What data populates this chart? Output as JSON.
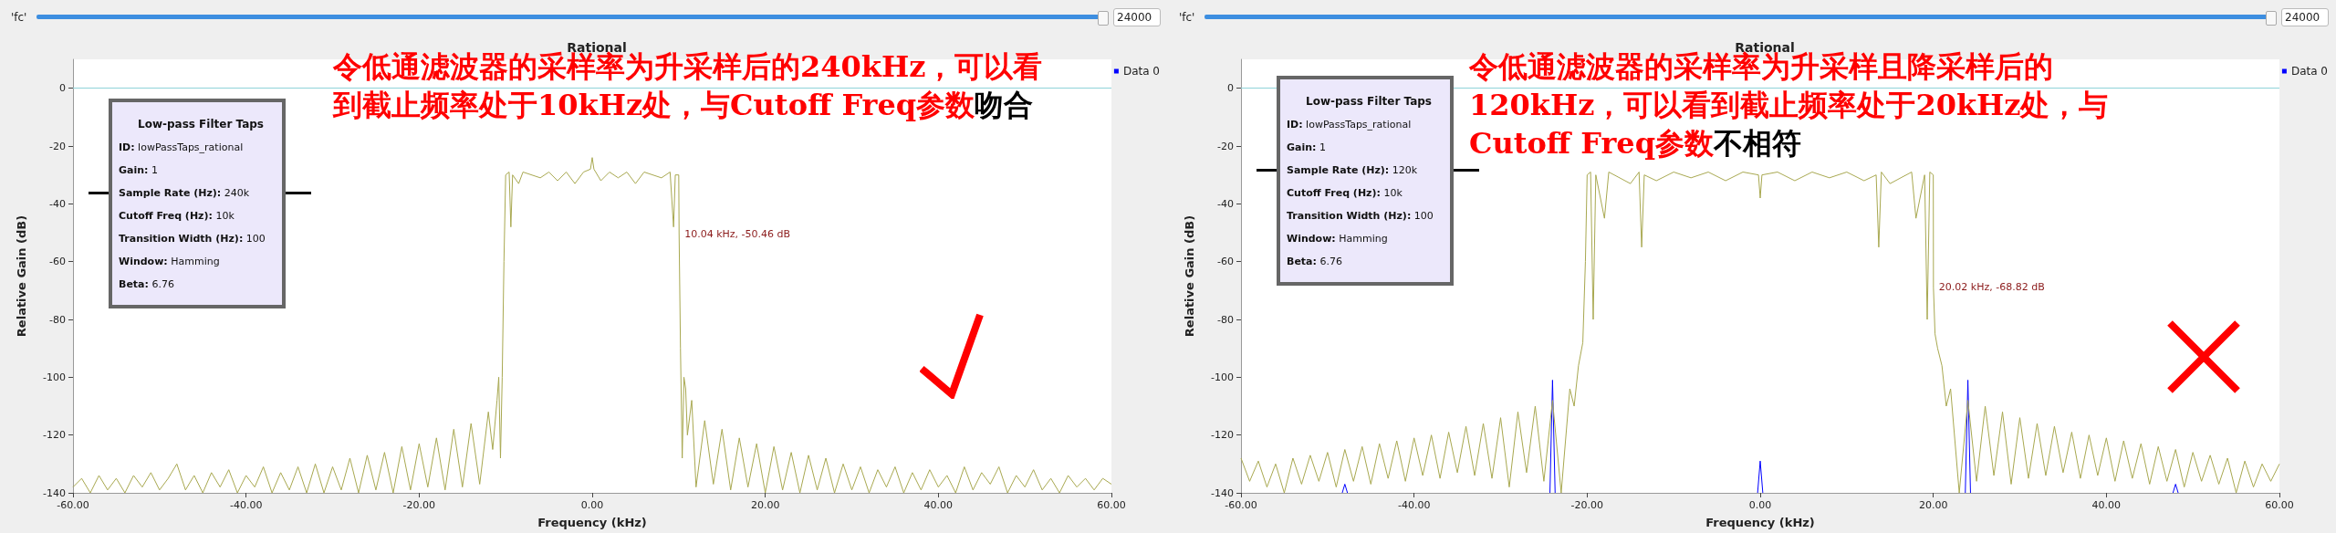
{
  "chart_data": [
    {
      "type": "line",
      "title": "Rational",
      "xlabel": "Frequency (kHz)",
      "ylabel": "Relative Gain (dB)",
      "xlim": [
        -60,
        60
      ],
      "xticks": [
        {
          "value": -60,
          "label": "-60.00"
        },
        {
          "value": -40,
          "label": "-40.00"
        },
        {
          "value": -20,
          "label": "-20.00"
        },
        {
          "value": 0,
          "label": "0.00"
        },
        {
          "value": 20,
          "label": "20.00"
        },
        {
          "value": 40,
          "label": "40.00"
        },
        {
          "value": 60,
          "label": "60.00"
        }
      ],
      "ylim": [
        -140,
        10
      ],
      "yticks": [
        -140,
        -120,
        -100,
        -80,
        -60,
        -40,
        -20,
        0
      ],
      "grid": false,
      "legend": "top right",
      "ref_lines": [
        {
          "axis": "y",
          "value": 0,
          "color": "#8fd3d8"
        }
      ],
      "series": [
        {
          "name": "Data 0",
          "color": "#0000ff"
        },
        {
          "color": "#a8a850",
          "x": [
            -60,
            -59,
            -58,
            -57,
            -56,
            -55,
            -54,
            -53,
            -52,
            -51,
            -50,
            -49,
            -48,
            -47,
            -46,
            -45,
            -44,
            -43,
            -42,
            -41,
            -40,
            -39,
            -38,
            -37,
            -36,
            -35,
            -34,
            -33,
            -32,
            -31,
            -30,
            -29,
            -28,
            -27,
            -26,
            -25,
            -24,
            -23,
            -22,
            -21,
            -20,
            -19,
            -18,
            -17,
            -16,
            -15,
            -14,
            -13,
            -12,
            -11.5,
            -11,
            -10.8,
            -10.6,
            -10.4,
            -10.2,
            -10,
            -9.6,
            -9.4,
            -9.2,
            -8.5,
            -8,
            -6,
            -5,
            -4,
            -3,
            -2,
            -1,
            -0.2,
            0,
            0.2,
            1,
            2,
            3,
            4,
            5,
            6,
            8,
            9,
            9.4,
            9.6,
            10,
            10.04,
            10.2,
            10.4,
            10.6,
            10.8,
            11,
            11.5,
            12,
            13,
            14,
            15,
            16,
            17,
            18,
            19,
            20,
            21,
            22,
            23,
            24,
            25,
            26,
            27,
            28,
            29,
            30,
            31,
            32,
            33,
            34,
            35,
            36,
            37,
            38,
            39,
            40,
            41,
            42,
            43,
            44,
            45,
            46,
            47,
            48,
            49,
            50,
            51,
            52,
            53,
            54,
            55,
            56,
            57,
            58,
            59,
            60
          ],
          "values": [
            -138,
            -135,
            -140,
            -134,
            -139,
            -135,
            -140,
            -134,
            -138,
            -133,
            -139,
            -135,
            -130,
            -139,
            -134,
            -140,
            -133,
            -138,
            -132,
            -140,
            -134,
            -138,
            -131,
            -140,
            -133,
            -139,
            -131,
            -140,
            -130,
            -140,
            -131,
            -139,
            -128,
            -140,
            -127,
            -139,
            -126,
            -140,
            -124,
            -139,
            -123,
            -138,
            -121,
            -139,
            -118,
            -138,
            -116,
            -137,
            -112,
            -125,
            -108,
            -100,
            -128,
            -100,
            -60,
            -30,
            -29,
            -48,
            -30,
            -33,
            -29,
            -31,
            -29,
            -32,
            -29,
            -33,
            -29,
            -28,
            -24,
            -28,
            -32,
            -29,
            -31,
            -29,
            -33,
            -29,
            -31,
            -29,
            -48,
            -30,
            -30,
            -50,
            -90,
            -128,
            -100,
            -104,
            -120,
            -108,
            -138,
            -115,
            -137,
            -118,
            -139,
            -121,
            -138,
            -123,
            -140,
            -124,
            -139,
            -126,
            -140,
            -127,
            -139,
            -128,
            -140,
            -130,
            -139,
            -131,
            -140,
            -132,
            -138,
            -131,
            -140,
            -133,
            -139,
            -132,
            -138,
            -134,
            -140,
            -131,
            -139,
            -133,
            -137,
            -131,
            -140,
            -134,
            -138,
            -132,
            -139,
            -135,
            -140,
            -134,
            -138,
            -135,
            -139,
            -135,
            -137
          ]
        }
      ],
      "annotations": [
        "'fc'",
        "24000",
        {
          "text": "10.04 kHz, -50.46 dB",
          "x": 10.04,
          "y": -50.46
        },
        "Low-pass Filter Taps",
        "ID: lowPassTaps_rational",
        "Gain: 1",
        "Sample Rate (Hz): 240k",
        "Cutoff Freq (Hz): 10k",
        "Transition Width (Hz): 100",
        "Window: Hamming",
        "Beta: 6.76",
        "令低通滤波器的采样率为升采样后的240kHz，可以看到截止频率处于10kHz处，与Cutoff Freq参数",
        "吻合"
      ]
    },
    {
      "type": "line",
      "title": "Rational",
      "xlabel": "Frequency (kHz)",
      "ylabel": "Relative Gain (dB)",
      "xlim": [
        -60,
        60
      ],
      "xticks": [
        {
          "value": -60,
          "label": "-60.00"
        },
        {
          "value": -40,
          "label": "-40.00"
        },
        {
          "value": -20,
          "label": "-20.00"
        },
        {
          "value": 0,
          "label": "0.00"
        },
        {
          "value": 20,
          "label": "20.00"
        },
        {
          "value": 40,
          "label": "40.00"
        },
        {
          "value": 60,
          "label": "60.00"
        }
      ],
      "ylim": [
        -140,
        10
      ],
      "yticks": [
        -140,
        -120,
        -100,
        -80,
        -60,
        -40,
        -20,
        0
      ],
      "grid": false,
      "legend": "top right",
      "ref_lines": [
        {
          "axis": "y",
          "value": 0,
          "color": "#8fd3d8"
        }
      ],
      "series": [
        {
          "name": "Data 0",
          "color": "#0000ff",
          "x": [
            -48.3,
            -48,
            -47.7,
            -47.6,
            -24.3,
            -24,
            -23.7,
            -23.6,
            -0.3,
            0,
            0.3,
            0.4,
            23.7,
            24,
            24.3,
            24.4,
            47.7,
            48,
            48.3
          ],
          "values": [
            -140,
            -137,
            -140,
            null,
            -140,
            -101,
            -140,
            null,
            -140,
            -129,
            -140,
            null,
            -140,
            -101,
            -140,
            null,
            -140,
            -137,
            -140
          ]
        },
        {
          "color": "#a8a850",
          "x": [
            -60,
            -59,
            -58,
            -57,
            -56,
            -55,
            -54,
            -53,
            -52,
            -51,
            -50,
            -49,
            -48,
            -47,
            -46,
            -45,
            -44,
            -43,
            -42,
            -41,
            -40,
            -39,
            -38,
            -37,
            -36,
            -35,
            -34,
            -33,
            -32,
            -31,
            -30,
            -29,
            -28,
            -27,
            -26,
            -25,
            -24,
            -23,
            -22,
            -21.5,
            -21,
            -20.5,
            -20.2,
            -20,
            -19.6,
            -19.3,
            -19,
            -18,
            -17.5,
            -15,
            -14,
            -13.7,
            -13.4,
            -12,
            -10,
            -8,
            -6,
            -4,
            -2,
            -0.2,
            0,
            0.2,
            2,
            4,
            6,
            8,
            10,
            12,
            13.4,
            13.7,
            14,
            15,
            17.5,
            18,
            19,
            19.3,
            19.6,
            20,
            20.02,
            20.2,
            20.5,
            21,
            21.5,
            22,
            23,
            24,
            25,
            26,
            27,
            28,
            29,
            30,
            31,
            32,
            33,
            34,
            35,
            36,
            37,
            38,
            39,
            40,
            41,
            42,
            43,
            44,
            45,
            46,
            47,
            48,
            49,
            50,
            51,
            52,
            53,
            54,
            55,
            56,
            57,
            58,
            59,
            60
          ],
          "values": [
            -128,
            -136,
            -129,
            -138,
            -130,
            -140,
            -128,
            -137,
            -127,
            -136,
            -126,
            -138,
            -125,
            -136,
            -124,
            -137,
            -123,
            -135,
            -122,
            -136,
            -121,
            -134,
            -120,
            -135,
            -119,
            -133,
            -117,
            -134,
            -116,
            -135,
            -114,
            -138,
            -112,
            -133,
            -110,
            -136,
            -108,
            -140,
            -104,
            -110,
            -96,
            -88,
            -60,
            -30,
            -29,
            -80,
            -30,
            -45,
            -29,
            -33,
            -29,
            -55,
            -30,
            -32,
            -29,
            -31,
            -29,
            -32,
            -29,
            -30,
            -38,
            -30,
            -29,
            -32,
            -29,
            -31,
            -29,
            -32,
            -30,
            -55,
            -29,
            -33,
            -29,
            -45,
            -30,
            -80,
            -29,
            -30,
            -69,
            -85,
            -90,
            -96,
            -110,
            -104,
            -140,
            -108,
            -136,
            -110,
            -134,
            -112,
            -137,
            -114,
            -135,
            -116,
            -134,
            -117,
            -133,
            -119,
            -135,
            -120,
            -134,
            -121,
            -136,
            -122,
            -135,
            -123,
            -137,
            -124,
            -136,
            -125,
            -138,
            -126,
            -136,
            -127,
            -137,
            -128,
            -140,
            -129,
            -138,
            -130,
            -136,
            -130
          ]
        }
      ],
      "annotations": [
        "'fc'",
        "24000",
        {
          "text": "20.02 kHz, -68.82 dB",
          "x": 20.02,
          "y": -68.82
        },
        "Low-pass Filter Taps",
        "ID: lowPassTaps_rational",
        "Gain: 1",
        "Sample Rate (Hz): 120k",
        "Cutoff Freq (Hz): 10k",
        "Transition Width (Hz): 100",
        "Window: Hamming",
        "Beta: 6.76",
        "令低通滤波器的采样率为升采样且降采样后的120kHz，可以看到截止频率处于20kHz处，与Cutoff Freq参数",
        "不相符"
      ]
    }
  ]
}
